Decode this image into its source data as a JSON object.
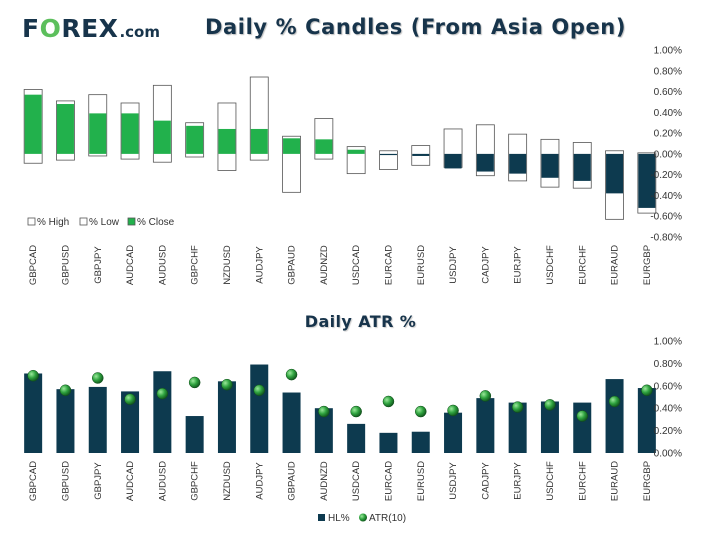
{
  "logo": {
    "text_pre": "F",
    "text_ring": "O",
    "text_post": "REX",
    "tld": ".com"
  },
  "colors": {
    "navy": "#0d3a4f",
    "green": "#22b14c",
    "ring": "#5cbf5c",
    "dot": "#2a8f3a"
  },
  "chart_data": [
    {
      "type": "candles",
      "title": "Daily % Candles (From Asia Open)",
      "categories": [
        "GBPCAD",
        "GBPUSD",
        "GBPJPY",
        "AUDCAD",
        "AUDUSD",
        "GBPCHF",
        "NZDUSD",
        "AUDJPY",
        "GBPAUD",
        "AUDNZD",
        "USDCAD",
        "EURCAD",
        "EURUSD",
        "USDJPY",
        "CADJPY",
        "EURJPY",
        "USDCHF",
        "EURCHF",
        "EURAUD",
        "EURGBP"
      ],
      "series": [
        {
          "name": "% High",
          "values": [
            0.62,
            0.51,
            0.57,
            0.49,
            0.66,
            0.3,
            0.49,
            0.74,
            0.17,
            0.34,
            0.07,
            0.03,
            0.08,
            0.24,
            0.28,
            0.19,
            0.14,
            0.11,
            0.03,
            0.01
          ]
        },
        {
          "name": "% Low",
          "values": [
            -0.09,
            -0.06,
            -0.02,
            -0.05,
            -0.08,
            -0.03,
            -0.16,
            -0.06,
            -0.37,
            -0.05,
            -0.19,
            -0.15,
            -0.11,
            -0.13,
            -0.21,
            -0.26,
            -0.32,
            -0.33,
            -0.63,
            -0.57
          ]
        },
        {
          "name": "% Close",
          "values": [
            0.57,
            0.48,
            0.39,
            0.39,
            0.32,
            0.27,
            0.24,
            0.24,
            0.15,
            0.14,
            0.04,
            -0.01,
            -0.02,
            -0.14,
            -0.17,
            -0.19,
            -0.23,
            -0.26,
            -0.38,
            -0.52
          ]
        }
      ],
      "yticks": [
        "1.00%",
        "0.80%",
        "0.60%",
        "0.40%",
        "0.20%",
        "0.00%",
        "-0.20%",
        "-0.40%",
        "-0.60%",
        "-0.80%"
      ],
      "ylim": [
        -0.8,
        1.0
      ],
      "legend_position": "bottom-left"
    },
    {
      "type": "bar",
      "title": "Daily ATR %",
      "categories": [
        "GBPCAD",
        "GBPUSD",
        "GBPJPY",
        "AUDCAD",
        "AUDUSD",
        "GBPCHF",
        "NZDUSD",
        "AUDJPY",
        "GBPAUD",
        "AUDNZD",
        "USDCAD",
        "EURCAD",
        "EURUSD",
        "USDJPY",
        "CADJPY",
        "EURJPY",
        "USDCHF",
        "EURCHF",
        "EURAUD",
        "EURGBP"
      ],
      "series": [
        {
          "name": "HL%",
          "values": [
            0.71,
            0.57,
            0.59,
            0.55,
            0.73,
            0.33,
            0.64,
            0.79,
            0.54,
            0.4,
            0.26,
            0.18,
            0.19,
            0.36,
            0.49,
            0.45,
            0.46,
            0.45,
            0.66,
            0.58
          ]
        },
        {
          "name": "ATR(10)",
          "values": [
            0.69,
            0.56,
            0.67,
            0.48,
            0.53,
            0.63,
            0.61,
            0.56,
            0.7,
            0.37,
            0.37,
            0.46,
            0.37,
            0.38,
            0.51,
            0.41,
            0.43,
            0.33,
            0.46,
            0.56
          ]
        }
      ],
      "yticks": [
        "1.00%",
        "0.80%",
        "0.60%",
        "0.40%",
        "0.20%",
        "0.00%"
      ],
      "ylim": [
        0,
        1.0
      ],
      "legend_position": "bottom-center"
    }
  ]
}
